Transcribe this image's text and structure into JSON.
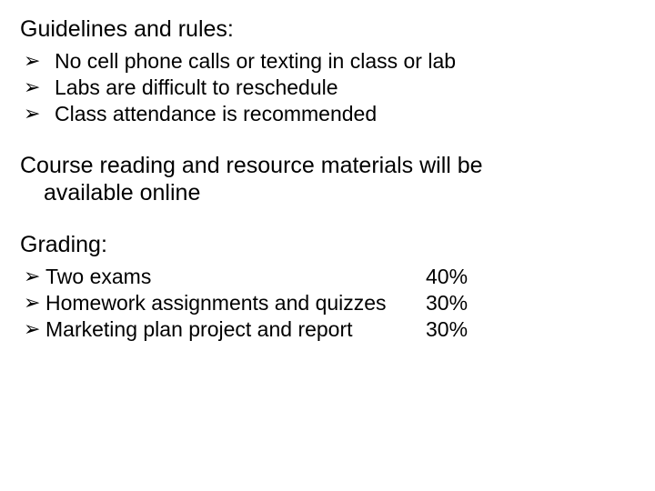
{
  "colors": {
    "background": "#ffffff",
    "text": "#000000"
  },
  "typography": {
    "font_family": "Arial, Helvetica, sans-serif",
    "heading_fontsize": 25,
    "body_fontsize": 23,
    "line_height": 1.25
  },
  "bullet_glyph": "➢",
  "sections": {
    "guidelines": {
      "heading": "Guidelines and rules:",
      "items": [
        "No cell phone calls or texting in class or lab",
        "Labs are difficult to reschedule",
        "Class attendance is recommended"
      ]
    },
    "resources": {
      "line1": "Course reading and resource materials will be",
      "line2": "available online"
    },
    "grading": {
      "heading": "Grading:",
      "items": [
        {
          "label": "Two exams",
          "pct": "40%"
        },
        {
          "label": "Homework assignments and quizzes",
          "pct": "30%"
        },
        {
          "label": "Marketing plan project and report",
          "pct": "30%"
        }
      ]
    }
  }
}
